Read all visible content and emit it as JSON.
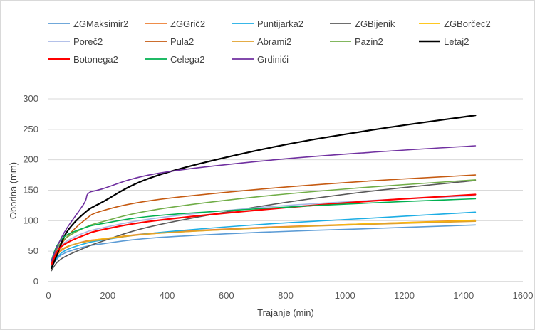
{
  "chart_data": {
    "type": "line",
    "title": "",
    "xlabel": "Trajanje (min)",
    "ylabel": "Oborina (mm)",
    "xlim": [
      0,
      1600
    ],
    "ylim": [
      0,
      300
    ],
    "x_ticks": [
      0,
      200,
      400,
      600,
      800,
      1000,
      1200,
      1400,
      1600
    ],
    "y_ticks": [
      0,
      50,
      100,
      150,
      200,
      250,
      300
    ],
    "grid": "horizontal",
    "legend_position": "top",
    "series": [
      {
        "name": "ZGMaksimir2",
        "color": "#5B9BD5",
        "x": [
          10,
          30,
          60,
          120,
          180,
          360,
          720,
          1080,
          1440
        ],
        "y": [
          23,
          38,
          48,
          57,
          62,
          72,
          81,
          87,
          93
        ]
      },
      {
        "name": "ZGGrič2",
        "color": "#ED7D31",
        "x": [
          10,
          30,
          60,
          120,
          180,
          360,
          720,
          1080,
          1440
        ],
        "y": [
          27,
          44,
          56,
          66,
          70,
          80,
          89,
          95,
          101
        ]
      },
      {
        "name": "Puntijarka2",
        "color": "#1CADE4",
        "x": [
          10,
          30,
          60,
          120,
          180,
          360,
          720,
          1080,
          1440
        ],
        "y": [
          24,
          40,
          52,
          62,
          68,
          80,
          94,
          104,
          114
        ]
      },
      {
        "name": "ZGBijenik",
        "color": "#595959",
        "x": [
          10,
          30,
          60,
          120,
          180,
          360,
          720,
          1080,
          1440
        ],
        "y": [
          18,
          32,
          42,
          55,
          66,
          92,
          124,
          148,
          166
        ]
      },
      {
        "name": "ZGBorčec2",
        "color": "#FFC000",
        "x": [
          10,
          30,
          60,
          120,
          180,
          360,
          720,
          1080,
          1440
        ],
        "y": [
          30,
          46,
          57,
          65,
          70,
          79,
          88,
          95,
          100
        ]
      },
      {
        "name": "Poreč2",
        "color": "#A9B8E6",
        "x": [
          10,
          30,
          60,
          120,
          180,
          360,
          720,
          1080,
          1440
        ],
        "y": [
          30,
          52,
          66,
          80,
          88,
          104,
          122,
          133,
          141
        ]
      },
      {
        "name": "Pula2",
        "color": "#C55A11",
        "x": [
          10,
          30,
          60,
          120,
          180,
          360,
          720,
          1080,
          1440
        ],
        "y": [
          28,
          50,
          72,
          100,
          116,
          134,
          152,
          165,
          175
        ]
      },
      {
        "name": "Abrami2",
        "color": "#E0A12B",
        "x": [
          10,
          30,
          60,
          120,
          180,
          360,
          720,
          1080,
          1440
        ],
        "y": [
          31,
          47,
          57,
          65,
          69,
          79,
          88,
          94,
          99
        ]
      },
      {
        "name": "Pazin2",
        "color": "#70AD47",
        "x": [
          10,
          30,
          60,
          120,
          180,
          360,
          720,
          1080,
          1440
        ],
        "y": [
          30,
          55,
          72,
          88,
          98,
          118,
          140,
          155,
          167
        ]
      },
      {
        "name": "Letaj2",
        "color": "#000000",
        "x": [
          10,
          30,
          60,
          120,
          180,
          360,
          720,
          1080,
          1440
        ],
        "y": [
          22,
          45,
          80,
          112,
          130,
          173,
          217,
          248,
          273
        ]
      },
      {
        "name": "Botonega2",
        "color": "#FF0000",
        "x": [
          10,
          30,
          60,
          120,
          180,
          360,
          720,
          1080,
          1440
        ],
        "y": [
          28,
          50,
          63,
          76,
          85,
          100,
          118,
          132,
          143
        ]
      },
      {
        "name": "Celega2",
        "color": "#00B050",
        "x": [
          10,
          30,
          60,
          120,
          180,
          360,
          720,
          1080,
          1440
        ],
        "y": [
          35,
          60,
          76,
          88,
          95,
          108,
          120,
          129,
          136
        ]
      },
      {
        "name": "Grdinići",
        "color": "#7030A0",
        "x": [
          10,
          30,
          60,
          120,
          135,
          180,
          360,
          720,
          1080,
          1440
        ],
        "y": [
          34,
          58,
          86,
          128,
          145,
          152,
          177,
          198,
          212,
          223
        ]
      }
    ]
  }
}
